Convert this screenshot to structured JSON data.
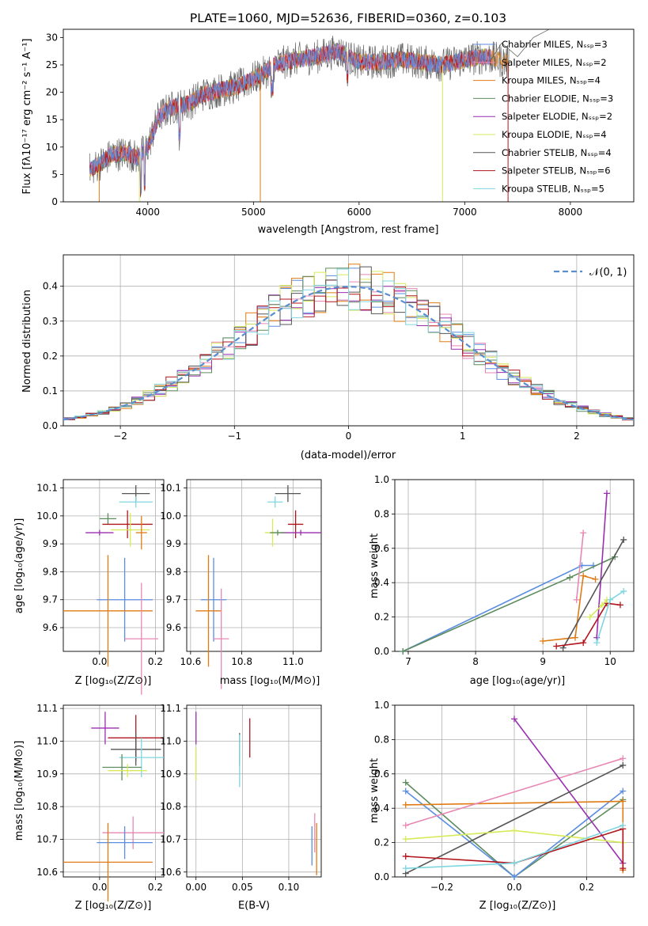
{
  "figure_title": "PLATE=1060, MJD=52636, FIBERID=0360, z=0.103",
  "colors": {
    "cm": "#e08a2a",
    "sm": "#e08a2a",
    "blue": "#5b8ee0",
    "orange": "#e07b14",
    "green": "#5e8c5e",
    "purple": "#9a2fb0",
    "yellowgreen": "#d6ea5a",
    "darkgray": "#555555",
    "crimson": "#b0141c",
    "cyan": "#7fd6e0",
    "pink": "#e887b4",
    "gaussian": "#5b8ecf"
  },
  "panels": {
    "spectrum": {
      "xlabel": "wavelength [Angstrom, rest frame]",
      "ylabel": "Flux [fλ10⁻¹⁷ erg cm⁻² s⁻¹ A⁻¹]",
      "xticks": [
        "4000",
        "5000",
        "6000",
        "7000",
        "8000"
      ],
      "yticks": [
        "0",
        "5",
        "10",
        "15",
        "20",
        "25",
        "30"
      ],
      "legend": [
        {
          "label": "Chabrier MILES, Nₛₛₚ=3",
          "color": "#5b8ee0"
        },
        {
          "label": "Salpeter MILES, Nₛₛₚ=2",
          "color": "#e887b4"
        },
        {
          "label": "Kroupa MILES, Nₛₛₚ=4",
          "color": "#e07b14"
        },
        {
          "label": "Chabrier ELODIE, Nₛₛₚ=3",
          "color": "#5e8c5e"
        },
        {
          "label": "Salpeter ELODIE, Nₛₛₚ=2",
          "color": "#9a2fb0"
        },
        {
          "label": "Kroupa ELODIE, Nₛₛₚ=4",
          "color": "#d6ea5a"
        },
        {
          "label": "Chabrier STELIB, Nₛₛₚ=4",
          "color": "#555555"
        },
        {
          "label": "Salpeter STELIB, Nₛₛₚ=6",
          "color": "#b0141c"
        },
        {
          "label": "Kroupa STELIB, Nₛₛₚ=5",
          "color": "#7fd6e0"
        }
      ]
    },
    "residual": {
      "xlabel": "(data-model)/error",
      "ylabel": "Normed distribution",
      "xticks": [
        "−2",
        "−1",
        "0",
        "1",
        "2"
      ],
      "yticks": [
        "0.0",
        "0.1",
        "0.2",
        "0.3",
        "0.4"
      ],
      "legend": "𝒩(0, 1)"
    },
    "age_z": {
      "xlabel": "Z [log₁₀(Z/Z⊙)]",
      "ylabel": "age  [log₁₀(age/yr)]",
      "xticks": [
        "0.0",
        "0.2"
      ],
      "yticks": [
        "9.6",
        "9.7",
        "9.8",
        "9.9",
        "10.0",
        "10.1"
      ]
    },
    "age_mass": {
      "xlabel": "mass [log₁₀(M/M⊙)]",
      "xticks": [
        "10.6",
        "10.8",
        "11.0"
      ],
      "yticks": [
        "9.6",
        "9.7",
        "9.8",
        "9.9",
        "10.0",
        "10.1"
      ]
    },
    "mw_age": {
      "xlabel": "age  [log₁₀(age/yr)]",
      "ylabel": "mass weight",
      "xticks": [
        "7",
        "8",
        "9",
        "10"
      ],
      "yticks": [
        "0.0",
        "0.2",
        "0.4",
        "0.6",
        "0.8",
        "1.0"
      ]
    },
    "mass_z": {
      "xlabel": "Z [log₁₀(Z/Z⊙)]",
      "ylabel": "mass [log₁₀(M/M⊙)]",
      "xticks": [
        "0.0",
        "0.2"
      ],
      "yticks": [
        "10.6",
        "10.7",
        "10.8",
        "10.9",
        "11.0",
        "11.1"
      ]
    },
    "mass_ebv": {
      "xlabel": "E(B-V)",
      "xticks": [
        "0.00",
        "0.05",
        "0.10"
      ],
      "yticks": [
        "10.6",
        "10.7",
        "10.8",
        "10.9",
        "11.0",
        "11.1"
      ]
    },
    "mw_z": {
      "xlabel": "Z [log₁₀(Z/Z⊙)]",
      "ylabel": "mass weight",
      "xticks": [
        "−0.2",
        "0.0",
        "0.2"
      ],
      "yticks": [
        "0.0",
        "0.2",
        "0.4",
        "0.6",
        "0.8",
        "1.0"
      ]
    }
  },
  "chart_data": [
    {
      "type": "line",
      "panel": "spectrum",
      "xlim": [
        3200,
        8600
      ],
      "ylim": [
        0,
        31.5
      ],
      "grid": false,
      "legend_placement": "top-right",
      "spectrum_anchors": {
        "x": [
          3450,
          3550,
          3650,
          3800,
          3900,
          4000,
          4100,
          4200,
          4300,
          4400,
          4500,
          4700,
          4850,
          4950,
          5100,
          5200,
          5400,
          5600,
          5800,
          5900,
          6000,
          6200,
          6400,
          6600,
          6800,
          7000,
          7200,
          7400
        ],
        "y": [
          5.8,
          7,
          8.5,
          9,
          8,
          10,
          15.5,
          17,
          17.5,
          18,
          19.5,
          20.5,
          21,
          22,
          23.5,
          25,
          26,
          26.5,
          27.5,
          26.5,
          25.5,
          25.5,
          26,
          25.5,
          25,
          26,
          26.5,
          25.5
        ]
      }
    },
    {
      "type": "bar",
      "panel": "residual",
      "xlim": [
        -2.5,
        2.5
      ],
      "ylim": [
        0,
        0.49
      ],
      "grid": true,
      "legend_placement": "top-right",
      "bin_width": 0.1,
      "gaussian": {
        "mu": 0,
        "sigma": 1
      }
    },
    {
      "type": "scatter",
      "panel": "age_z",
      "xlim": [
        -0.13,
        0.23
      ],
      "ylim": [
        9.515,
        10.13
      ],
      "points": [
        {
          "color": "#555555",
          "x": 0.13,
          "y": 10.08,
          "xerr": 0.05,
          "yerr": 0.03
        },
        {
          "color": "#7fd6e0",
          "x": 0.13,
          "y": 10.05,
          "xerr": 0.06,
          "yerr": 0.02
        },
        {
          "color": "#5e8c5e",
          "x": 0.03,
          "y": 9.99,
          "xerr": 0.03,
          "yerr": 0.02
        },
        {
          "color": "#b0141c",
          "x": 0.1,
          "y": 9.97,
          "xerr": 0.09,
          "yerr": 0.05
        },
        {
          "color": "#d6ea5a",
          "x": 0.11,
          "y": 9.95,
          "xerr": 0.07,
          "yerr": 0.06
        },
        {
          "color": "#9a2fb0",
          "x": 0.0,
          "y": 9.94,
          "xerr": 0.05,
          "yerr": 0.01
        },
        {
          "color": "#e07b14",
          "x": 0.15,
          "y": 9.94,
          "xerr": 0.02,
          "yerr": 0.06
        },
        {
          "color": "#5b8ee0",
          "x": 0.09,
          "y": 9.7,
          "xerr": 0.1,
          "yerr": 0.15
        },
        {
          "color": "#e07b14",
          "x": 0.03,
          "y": 9.66,
          "xerr": 0.16,
          "yerr": 0.2
        },
        {
          "color": "#e887b4",
          "x": 0.15,
          "y": 9.56,
          "xerr": 0.06,
          "yerr": 0.2
        }
      ]
    },
    {
      "type": "scatter",
      "panel": "age_mass",
      "xlim": [
        10.585,
        11.11
      ],
      "ylim": [
        9.515,
        10.13
      ],
      "points": [
        {
          "color": "#555555",
          "x": 10.98,
          "y": 10.08,
          "xerr": 0.05,
          "yerr": 0.03
        },
        {
          "color": "#7fd6e0",
          "x": 10.93,
          "y": 10.05,
          "xerr": 0.03,
          "yerr": 0.02
        },
        {
          "color": "#b0141c",
          "x": 11.01,
          "y": 9.97,
          "xerr": 0.03,
          "yerr": 0.05
        },
        {
          "color": "#9a2fb0",
          "x": 11.03,
          "y": 9.94,
          "xerr": 0.08,
          "yerr": 0.01
        },
        {
          "color": "#d6ea5a",
          "x": 10.92,
          "y": 9.94,
          "xerr": 0.03,
          "yerr": 0.05
        },
        {
          "color": "#5e8c5e",
          "x": 10.94,
          "y": 9.94,
          "xerr": 0.03,
          "yerr": 0.01
        },
        {
          "color": "#5b8ee0",
          "x": 10.69,
          "y": 9.7,
          "xerr": 0.05,
          "yerr": 0.15
        },
        {
          "color": "#e07b14",
          "x": 10.67,
          "y": 9.66,
          "xerr": 0.05,
          "yerr": 0.2
        },
        {
          "color": "#e887b4",
          "x": 10.72,
          "y": 9.56,
          "xerr": 0.03,
          "yerr": 0.18
        }
      ]
    },
    {
      "type": "line",
      "panel": "mw_age",
      "xlim": [
        6.8,
        10.35
      ],
      "ylim": [
        0,
        1
      ],
      "grid": true,
      "series": [
        {
          "color": "#5b8ee0",
          "x": [
            6.92,
            9.58,
            9.75
          ],
          "y": [
            0.0,
            0.5,
            0.5
          ]
        },
        {
          "color": "#5e8c5e",
          "x": [
            6.92,
            9.4,
            10.07
          ],
          "y": [
            0.0,
            0.43,
            0.55
          ]
        },
        {
          "color": "#e07b14",
          "x": [
            9.0,
            9.48,
            9.6,
            9.78
          ],
          "y": [
            0.06,
            0.08,
            0.44,
            0.42
          ]
        },
        {
          "color": "#e887b4",
          "x": [
            9.5,
            9.6
          ],
          "y": [
            0.3,
            0.69
          ]
        },
        {
          "color": "#9a2fb0",
          "x": [
            9.8,
            9.95
          ],
          "y": [
            0.08,
            0.92
          ]
        },
        {
          "color": "#555555",
          "x": [
            9.3,
            10.2
          ],
          "y": [
            0.02,
            0.65
          ]
        },
        {
          "color": "#b0141c",
          "x": [
            9.2,
            9.6,
            9.95,
            10.15
          ],
          "y": [
            0.03,
            0.05,
            0.28,
            0.27
          ]
        },
        {
          "color": "#d6ea5a",
          "x": [
            9.7,
            9.88,
            9.95
          ],
          "y": [
            0.2,
            0.27,
            0.3
          ]
        },
        {
          "color": "#7fd6e0",
          "x": [
            9.8,
            10.0,
            10.2
          ],
          "y": [
            0.05,
            0.3,
            0.35
          ]
        }
      ]
    },
    {
      "type": "scatter",
      "panel": "mass_z",
      "xlim": [
        -0.13,
        0.23
      ],
      "ylim": [
        10.585,
        11.11
      ],
      "points": [
        {
          "color": "#9a2fb0",
          "x": 0.02,
          "y": 11.04,
          "xerr": 0.05,
          "yerr": 0.05
        },
        {
          "color": "#b0141c",
          "x": 0.13,
          "y": 11.01,
          "xerr": 0.1,
          "yerr": 0.07
        },
        {
          "color": "#555555",
          "x": 0.13,
          "y": 10.975,
          "xerr": 0.09,
          "yerr": 0.05
        },
        {
          "color": "#7fd6e0",
          "x": 0.15,
          "y": 10.95,
          "xerr": 0.08,
          "yerr": 0.06
        },
        {
          "color": "#5e8c5e",
          "x": 0.08,
          "y": 10.92,
          "xerr": 0.07,
          "yerr": 0.04
        },
        {
          "color": "#d6ea5a",
          "x": 0.1,
          "y": 10.91,
          "xerr": 0.07,
          "yerr": 0.02
        },
        {
          "color": "#e887b4",
          "x": 0.12,
          "y": 10.72,
          "xerr": 0.11,
          "yerr": 0.05
        },
        {
          "color": "#5b8ee0",
          "x": 0.09,
          "y": 10.69,
          "xerr": 0.1,
          "yerr": 0.05
        },
        {
          "color": "#e07b14",
          "x": 0.03,
          "y": 10.63,
          "xerr": 0.16,
          "yerr": 0.12
        }
      ]
    },
    {
      "type": "scatter",
      "panel": "mass_ebv",
      "xlim": [
        -0.01,
        0.135
      ],
      "ylim": [
        10.585,
        11.11
      ],
      "points": [
        {
          "color": "#9a2fb0",
          "x": 0.0,
          "y": 11.04,
          "xerr": 0,
          "yerr": 0.05
        },
        {
          "color": "#d6ea5a",
          "x": 0.0,
          "y": 10.93,
          "xerr": 0,
          "yerr": 0.05
        },
        {
          "color": "#555555",
          "x": 0.047,
          "y": 10.975,
          "xerr": 0,
          "yerr": 0.05
        },
        {
          "color": "#7fd6e0",
          "x": 0.047,
          "y": 10.94,
          "xerr": 0,
          "yerr": 0.08
        },
        {
          "color": "#b0141c",
          "x": 0.058,
          "y": 11.01,
          "xerr": 0,
          "yerr": 0.06
        },
        {
          "color": "#e887b4",
          "x": 0.128,
          "y": 10.72,
          "xerr": 0,
          "yerr": 0.06
        },
        {
          "color": "#5b8ee0",
          "x": 0.125,
          "y": 10.68,
          "xerr": 0,
          "yerr": 0.06
        },
        {
          "color": "#e07b14",
          "x": 0.13,
          "y": 10.67,
          "xerr": 0,
          "yerr": 0.08
        }
      ]
    },
    {
      "type": "line",
      "panel": "mw_z",
      "xlim": [
        -0.33,
        0.33
      ],
      "ylim": [
        0,
        1
      ],
      "grid": true,
      "series": [
        {
          "color": "#5e8c5e",
          "x": [
            -0.3,
            0.0,
            0.3
          ],
          "y": [
            0.55,
            0.0,
            0.45
          ]
        },
        {
          "color": "#5b8ee0",
          "x": [
            -0.3,
            0.0,
            0.3
          ],
          "y": [
            0.5,
            0.0,
            0.5
          ]
        },
        {
          "color": "#e07b14",
          "x": [
            -0.3,
            0.3,
            0.3
          ],
          "y": [
            0.42,
            0.44,
            0.04
          ]
        },
        {
          "color": "#e887b4",
          "x": [
            -0.3,
            0.3
          ],
          "y": [
            0.3,
            0.69
          ]
        },
        {
          "color": "#9a2fb0",
          "x": [
            0.0,
            0.3
          ],
          "y": [
            0.92,
            0.08
          ]
        },
        {
          "color": "#555555",
          "x": [
            -0.3,
            0.3
          ],
          "y": [
            0.02,
            0.65
          ]
        },
        {
          "color": "#d6ea5a",
          "x": [
            -0.3,
            0.0,
            0.3
          ],
          "y": [
            0.22,
            0.27,
            0.2
          ]
        },
        {
          "color": "#b0141c",
          "x": [
            -0.3,
            0.0,
            0.3,
            0.3
          ],
          "y": [
            0.12,
            0.08,
            0.28,
            0.05
          ]
        },
        {
          "color": "#7fd6e0",
          "x": [
            -0.3,
            0.0,
            0.3
          ],
          "y": [
            0.05,
            0.08,
            0.3
          ]
        }
      ]
    }
  ]
}
